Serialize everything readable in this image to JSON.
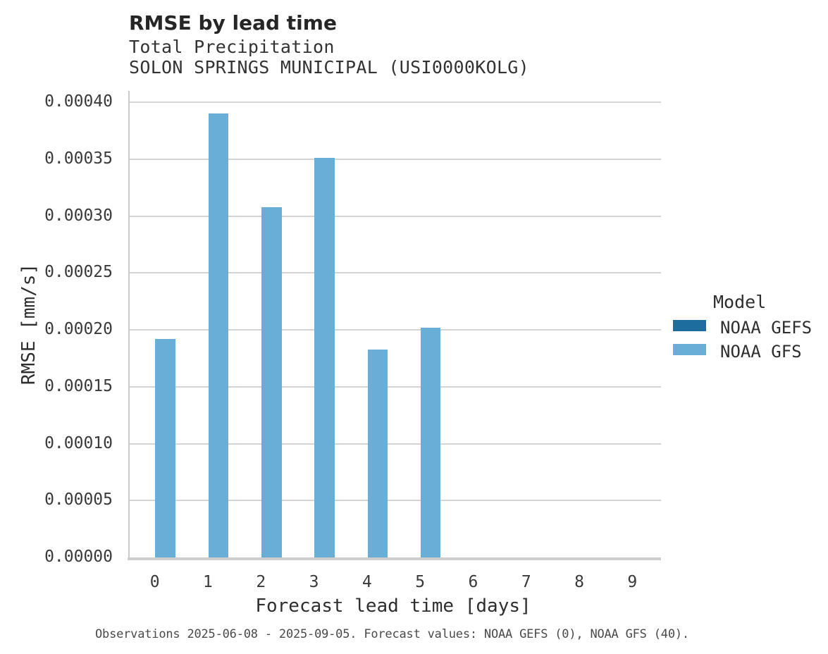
{
  "chart_data": {
    "type": "bar",
    "title": "RMSE by lead time",
    "subtitle1": "Total Precipitation",
    "subtitle2": "SOLON SPRINGS MUNICIPAL (USI0000KOLG)",
    "xlabel": "Forecast lead time [days]",
    "ylabel": "RMSE [mm/s]",
    "categories": [
      0,
      1,
      2,
      3,
      4,
      5,
      6,
      7,
      8,
      9
    ],
    "xtick_labels": [
      "0",
      "1",
      "2",
      "3",
      "4",
      "5",
      "6",
      "7",
      "8",
      "9"
    ],
    "series": [
      {
        "name": "NOAA GEFS",
        "color": "#1d6d9e",
        "values": [
          null,
          null,
          null,
          null,
          null,
          null,
          null,
          null,
          null,
          null
        ]
      },
      {
        "name": "NOAA GFS",
        "color": "#69aed6",
        "values": [
          0.000192,
          0.00039,
          0.000308,
          0.000351,
          0.000183,
          0.000202,
          null,
          null,
          null,
          null
        ]
      }
    ],
    "ylim": [
      0,
      0.00041
    ],
    "ytick_step": 5e-05,
    "ytick_values": [
      0,
      5e-05,
      0.0001,
      0.00015,
      0.0002,
      0.00025,
      0.0003,
      0.00035,
      0.0004
    ],
    "ytick_labels": [
      "0.00000",
      "0.00005",
      "0.00010",
      "0.00015",
      "0.00020",
      "0.00025",
      "0.00030",
      "0.00035",
      "0.00040"
    ],
    "grid": true,
    "legend": {
      "title": "Model",
      "position": "right"
    }
  },
  "legend": {
    "title": "Model",
    "items": [
      {
        "label": "NOAA GEFS",
        "color": "#1d6d9e"
      },
      {
        "label": "NOAA GFS",
        "color": "#69aed6"
      }
    ]
  },
  "caption": {
    "text": "Observations 2025-06-08 - 2025-09-05. Forecast values: NOAA GEFS (0), NOAA GFS (40)."
  }
}
